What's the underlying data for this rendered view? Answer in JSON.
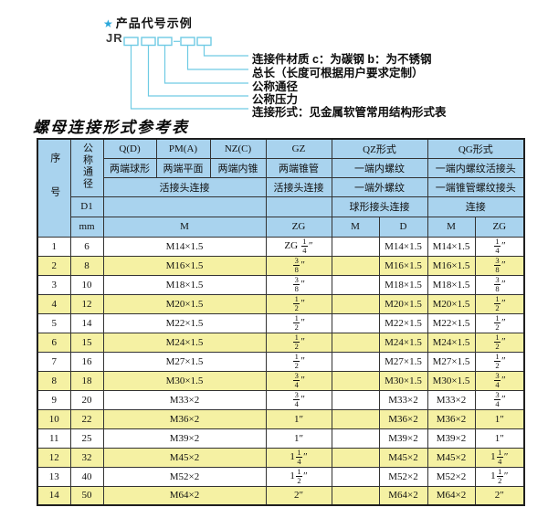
{
  "colors": {
    "accent_cyan": "#6fcbe4",
    "star_blue": "#2aa7da",
    "header_blue": "#a9d3ee",
    "row_yellow": "#f5f1a3",
    "border_dark": "#1f1f1f"
  },
  "diagram": {
    "star": "★",
    "heading": "产品代号示例",
    "code_prefix": "JR",
    "labels": [
      "连接件材质 c：为碳钢 b：为不锈钢",
      "总长（长度可根据用户要求定制）",
      "公称通径",
      "公称压力",
      "连接形式：见金属软管常用结构形式表"
    ]
  },
  "table": {
    "title": "螺母连接形式参考表",
    "header": {
      "seq": "序号",
      "dn": "公称通径",
      "d1": "D1",
      "mm": "mm",
      "q": "Q(D)",
      "pm": "PM(A)",
      "nz": "NZ(C)",
      "gz": "GZ",
      "qz": "QZ形式",
      "qg": "QG形式",
      "q_sub": "两端球形",
      "pm_sub": "两端平面",
      "nz_sub": "两端内锥",
      "gz_sub": "两端锥管",
      "qz_sub1": "一端内螺纹",
      "qg_sub1": "一端内螺纹活接头",
      "union_conn": "活接头连接",
      "gz_conn": "活接头连接",
      "qz_sub2": "一端外螺纹",
      "qg_sub2": "一端锥管螺纹接头",
      "qz_conn": "球形接头连接",
      "qg_conn": "连接",
      "m_main": "M",
      "zg_gz": "ZG",
      "m_qz": "M",
      "d_qz": "D",
      "m_qg": "M",
      "zg_qg": "ZG"
    },
    "rows": [
      [
        "1",
        "6",
        "M14×1.5",
        "ZG {1/4}″",
        "",
        "M14×1.5",
        "M14×1.5",
        "{1/4}″"
      ],
      [
        "2",
        "8",
        "M16×1.5",
        "{3/8}″",
        "",
        "M16×1.5",
        "M16×1.5",
        "{3/8}″"
      ],
      [
        "3",
        "10",
        "M18×1.5",
        "{3/8}″",
        "",
        "M18×1.5",
        "M18×1.5",
        "{3/8}″"
      ],
      [
        "4",
        "12",
        "M20×1.5",
        "{1/2}″",
        "",
        "M20×1.5",
        "M20×1.5",
        "{1/2}″"
      ],
      [
        "5",
        "14",
        "M22×1.5",
        "{1/2}″",
        "",
        "M22×1.5",
        "M22×1.5",
        "{1/2}″"
      ],
      [
        "6",
        "15",
        "M24×1.5",
        "{1/2}″",
        "",
        "M24×1.5",
        "M24×1.5",
        "{1/2}″"
      ],
      [
        "7",
        "16",
        "M27×1.5",
        "{1/2}″",
        "",
        "M27×1.5",
        "M27×1.5",
        "{1/2}″"
      ],
      [
        "8",
        "18",
        "M30×1.5",
        "{3/4}″",
        "",
        "M30×1.5",
        "M30×1.5",
        "{3/4}″"
      ],
      [
        "9",
        "20",
        "M33×2",
        "{3/4}″",
        "",
        "M33×2",
        "M33×2",
        "{3/4}″"
      ],
      [
        "10",
        "22",
        "M36×2",
        "1″",
        "",
        "M36×2",
        "M36×2",
        "1″"
      ],
      [
        "11",
        "25",
        "M39×2",
        "1″",
        "",
        "M39×2",
        "M39×2",
        "1″"
      ],
      [
        "12",
        "32",
        "M45×2",
        "1{1/4}″",
        "",
        "M45×2",
        "M45×2",
        "1{1/4}″"
      ],
      [
        "13",
        "40",
        "M52×2",
        "1{1/2}″",
        "",
        "M52×2",
        "M52×2",
        "1{1/2}″"
      ],
      [
        "14",
        "50",
        "M64×2",
        "2″",
        "",
        "M64×2",
        "M64×2",
        "2″"
      ]
    ]
  }
}
